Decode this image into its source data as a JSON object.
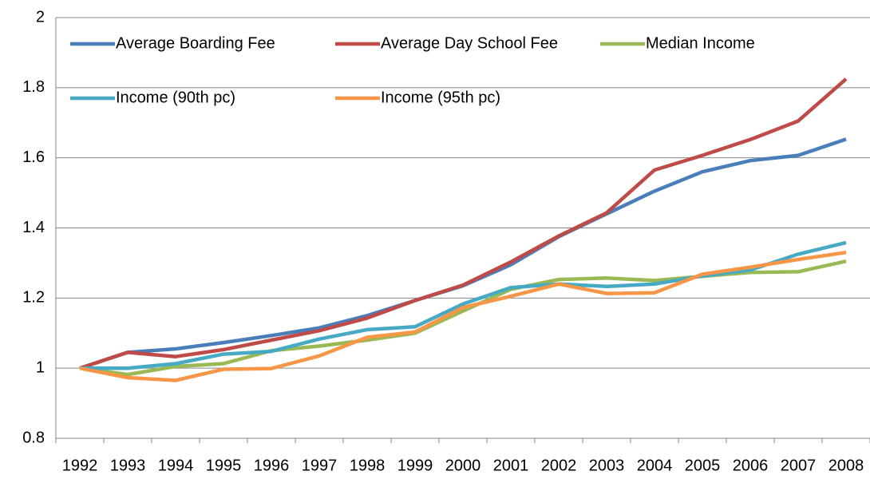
{
  "chart_data": {
    "type": "line",
    "categories": [
      "1992",
      "1993",
      "1994",
      "1995",
      "1996",
      "1997",
      "1998",
      "1999",
      "2000",
      "2001",
      "2002",
      "2003",
      "2004",
      "2005",
      "2006",
      "2007",
      "2008"
    ],
    "series": [
      {
        "name": "Average Boarding Fee",
        "color": "#4a7ebb",
        "values": [
          1.0,
          1.045,
          1.055,
          1.073,
          1.093,
          1.115,
          1.15,
          1.193,
          1.235,
          1.295,
          1.375,
          1.44,
          1.505,
          1.56,
          1.592,
          1.607,
          1.653
        ]
      },
      {
        "name": "Average Day School Fee",
        "color": "#be4b48",
        "values": [
          1.0,
          1.045,
          1.033,
          1.053,
          1.08,
          1.107,
          1.143,
          1.193,
          1.237,
          1.303,
          1.377,
          1.443,
          1.565,
          1.607,
          1.652,
          1.705,
          1.825
        ]
      },
      {
        "name": "Median Income",
        "color": "#98b954",
        "values": [
          1.0,
          0.982,
          1.005,
          1.013,
          1.05,
          1.063,
          1.08,
          1.1,
          1.163,
          1.225,
          1.253,
          1.257,
          1.25,
          1.262,
          1.273,
          1.275,
          1.305
        ]
      },
      {
        "name": "Income (90th pc)",
        "color": "#46aac5",
        "values": [
          1.0,
          1.0,
          1.013,
          1.04,
          1.048,
          1.083,
          1.11,
          1.118,
          1.183,
          1.23,
          1.24,
          1.233,
          1.24,
          1.263,
          1.28,
          1.325,
          1.358
        ]
      },
      {
        "name": "Income (95th pc)",
        "color": "#f79646",
        "values": [
          1.0,
          0.973,
          0.965,
          0.997,
          0.999,
          1.035,
          1.088,
          1.103,
          1.173,
          1.205,
          1.24,
          1.213,
          1.215,
          1.268,
          1.288,
          1.31,
          1.33
        ]
      }
    ],
    "ylim": [
      0.8,
      2
    ],
    "yticks": [
      0.8,
      1,
      1.2,
      1.4,
      1.6,
      1.8,
      2
    ],
    "grid": true,
    "legend": "top-left"
  }
}
